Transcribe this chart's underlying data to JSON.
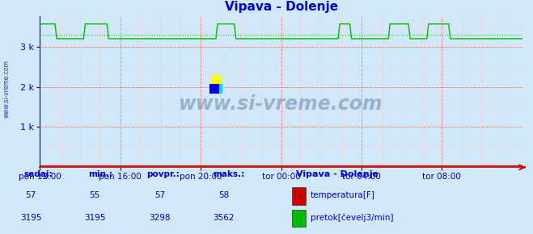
{
  "title": "Vipava - Dolenje",
  "bg_color": "#d0e8f8",
  "plot_bg_color": "#d0e8f8",
  "x_labels": [
    "pon 12:00",
    "pon 16:00",
    "pon 20:00",
    "tor 00:00",
    "tor 04:00",
    "tor 08:00"
  ],
  "x_ticks_norm": [
    0.0,
    0.1667,
    0.3333,
    0.5,
    0.6667,
    0.8333
  ],
  "ylim": [
    0,
    3750
  ],
  "yticks": [
    1000,
    2000,
    3000
  ],
  "ytick_labels": [
    "1 k",
    "2 k",
    "3 k"
  ],
  "grid_color_major": "#ff8888",
  "grid_color_minor": "#ffcccc",
  "temp_color": "#cc0000",
  "flow_color": "#00bb00",
  "temp_value": 57,
  "temp_min": 55,
  "temp_avg": 57,
  "temp_max": 58,
  "flow_value": 3195,
  "flow_min": 3195,
  "flow_avg": 3298,
  "flow_max": 3562,
  "label_color": "#0000cc",
  "title_color": "#0000cc",
  "watermark": "www.si-vreme.com",
  "station_label": "Vipava - Dolenje",
  "legend_temp": "temperatura[F]",
  "legend_flow": "pretok[čevelj3/min]",
  "n_points": 289,
  "flow_base": 3195,
  "flow_peak": 3562,
  "flow_avg_level": 3298,
  "temp_base": 57,
  "spike_ranges_pct": [
    [
      0,
      3.5
    ],
    [
      9.5,
      14.5
    ],
    [
      37.0,
      40.5
    ],
    [
      62.0,
      64.5
    ],
    [
      72.5,
      76.5
    ],
    [
      80.5,
      85.0
    ]
  ]
}
